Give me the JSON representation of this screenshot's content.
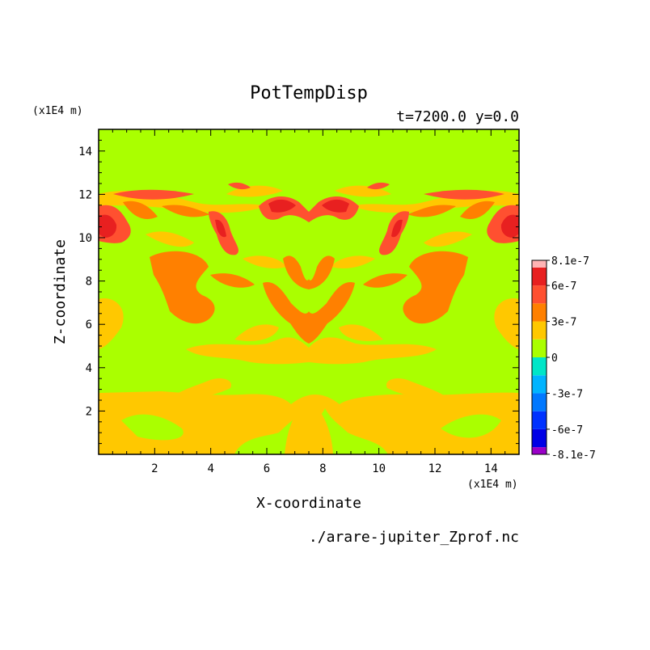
{
  "chart_data": {
    "type": "contour",
    "title": "PotTempDisp",
    "subtitle": "t=7200.0 y=0.0",
    "xlabel": "X-coordinate",
    "ylabel": "Z-coordinate",
    "x_unit": "(x1E4 m)",
    "y_unit": "(x1E4 m)",
    "xlim": [
      0,
      15
    ],
    "ylim": [
      0,
      15
    ],
    "x_ticks": [
      "2",
      "4",
      "6",
      "8",
      "10",
      "12",
      "14"
    ],
    "y_ticks": [
      "2",
      "4",
      "6",
      "8",
      "10",
      "12",
      "14"
    ],
    "source_file": "./arare-jupiter_Zprof.nc",
    "colorbar": {
      "labels": [
        "8.1e-7",
        "6e-7",
        "3e-7",
        "0",
        "-3e-7",
        "-6e-7",
        "-8.1e-7"
      ],
      "levels": [
        -8.1e-07,
        -7.5e-07,
        -6e-07,
        -4.5e-07,
        -3e-07,
        -1.5e-07,
        0,
        1.5e-07,
        3e-07,
        4.5e-07,
        6e-07,
        7.5e-07,
        8.1e-07
      ],
      "colors": [
        "#9a00c8",
        "#0000e6",
        "#0032ff",
        "#0078ff",
        "#00b4ff",
        "#00e6c8",
        "#aaff00",
        "#ffc800",
        "#ff8000",
        "#ff5030",
        "#e82020",
        "#ffb4b4"
      ]
    },
    "fields": {
      "background": {
        "level": "0 to 1.5e-7",
        "color": "#aaff00"
      },
      "positive_low": {
        "level": "1.5e-7 to 3e-7",
        "color": "#ffc800"
      },
      "positive_mid": {
        "level": "3e-7 to 4.5e-7",
        "color": "#ff8000"
      },
      "positive_high": {
        "level": "4.5e-7 to 6e-7",
        "color": "#ff5030"
      },
      "positive_max": {
        "level": "6e-7 to 7.5e-7",
        "color": "#e82020"
      }
    }
  }
}
